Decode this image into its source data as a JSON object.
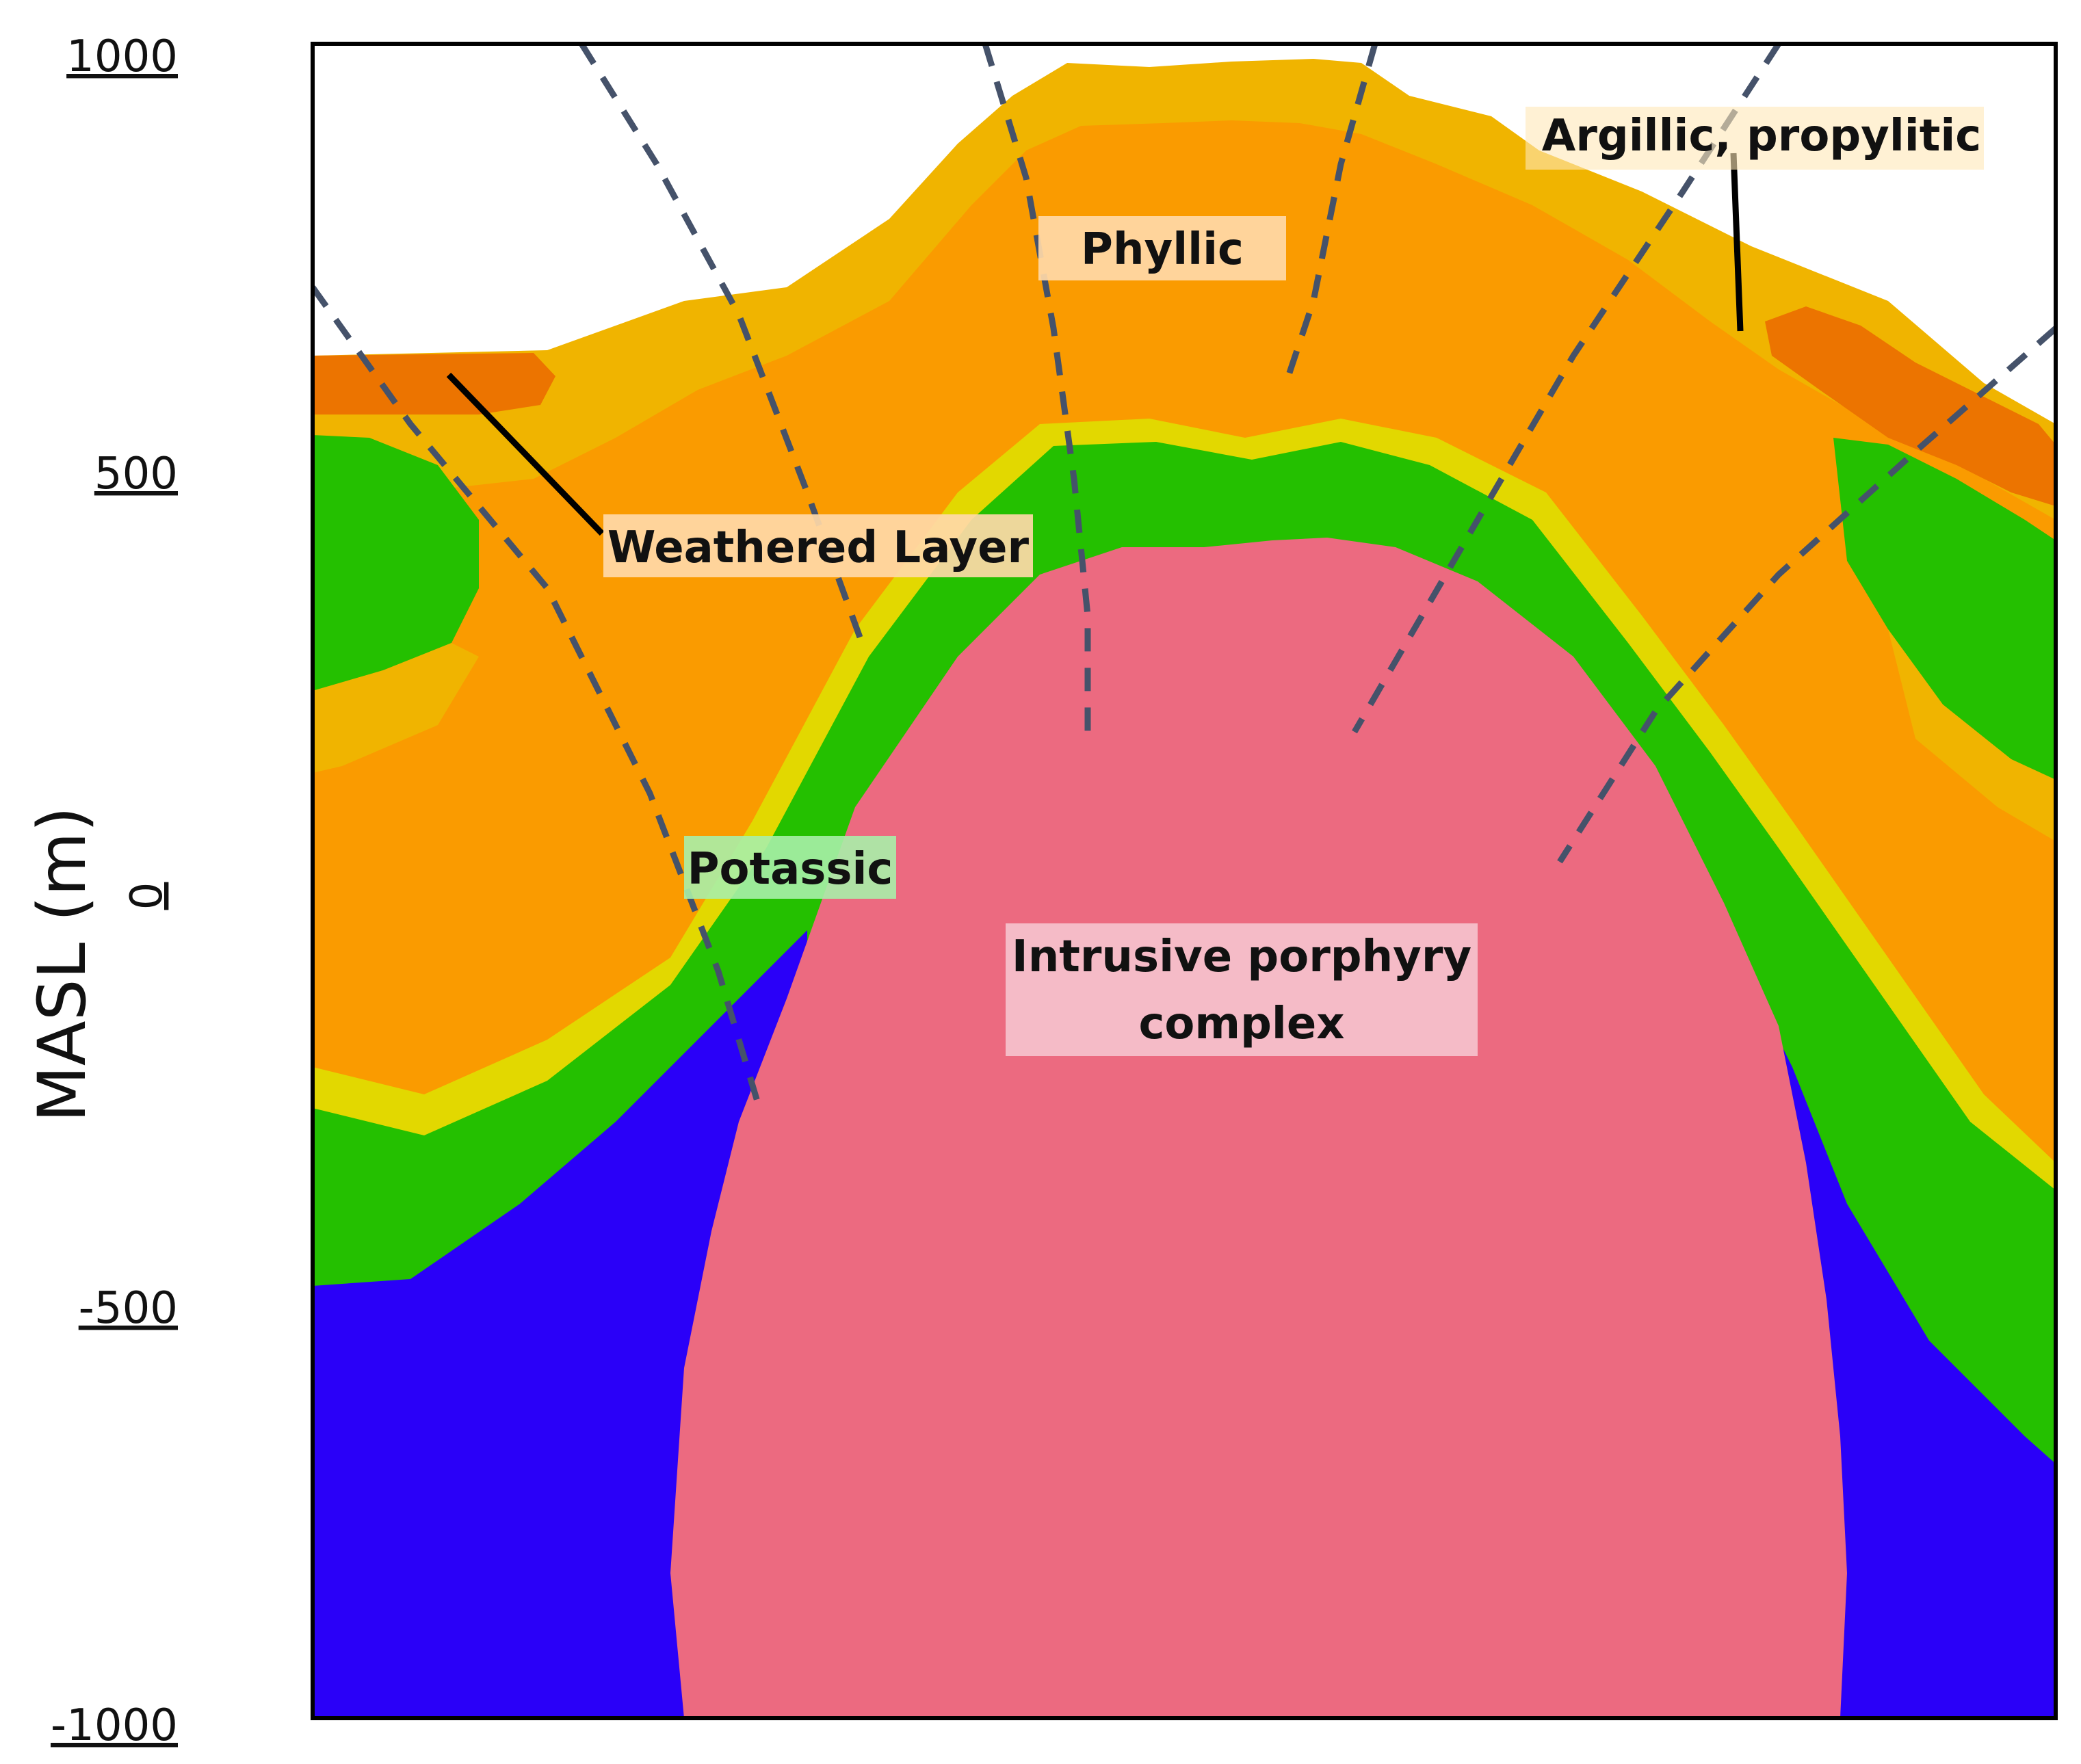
{
  "axis": {
    "title": "MASL (m)",
    "ticks": [
      "1000",
      "500",
      "0",
      "-500",
      "-1000"
    ]
  },
  "labels": {
    "weathered": "Weathered Layer",
    "phyllic": "Phyllic",
    "argillic": "Argillic, propylitic",
    "potassic": "Potassic",
    "intrusive_line1": "Intrusive porphyry",
    "intrusive_line2": "complex"
  },
  "colors": {
    "background": "#ffffff",
    "weathered": "#f0b400",
    "phyllic": "#fa9b00",
    "argillic_dark": "#ec7400",
    "transition": "#e2d800",
    "propylitic_green": "#24c000",
    "potassic_blue": "#2a00f8",
    "intrusive": "#ec6a80",
    "fault_line": "#45526a"
  }
}
